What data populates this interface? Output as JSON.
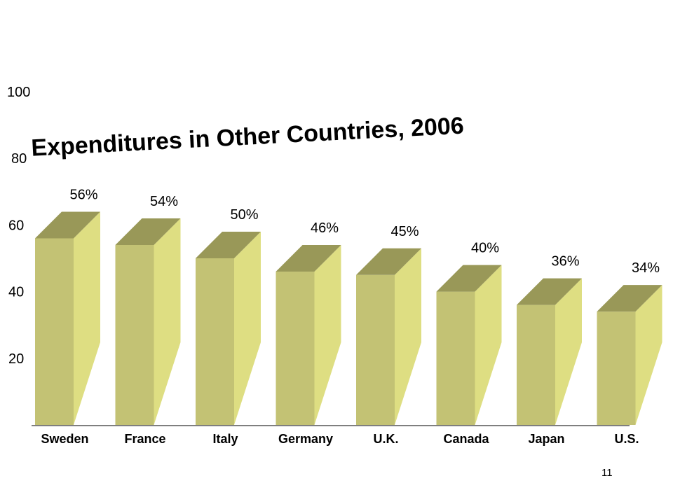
{
  "chart_data": {
    "type": "bar",
    "title": "Expenditures in Other Countries, 2006",
    "categories": [
      "Sweden",
      "France",
      "Italy",
      "Germany",
      "U.K.",
      "Canada",
      "Japan",
      "U.S."
    ],
    "values": [
      56,
      54,
      50,
      46,
      45,
      40,
      36,
      34
    ],
    "data_labels": [
      "56%",
      "54%",
      "50%",
      "46%",
      "45%",
      "40%",
      "36%",
      "34%"
    ],
    "y_ticks": [
      "20",
      "40",
      "60",
      "80",
      "100"
    ],
    "ylim": [
      0,
      100
    ],
    "grid": false,
    "legend": "none",
    "colors": {
      "front": "#C3C274",
      "side": "#DEDE82",
      "top": "#999858",
      "baseline": "#555555"
    }
  },
  "page_number": "11"
}
